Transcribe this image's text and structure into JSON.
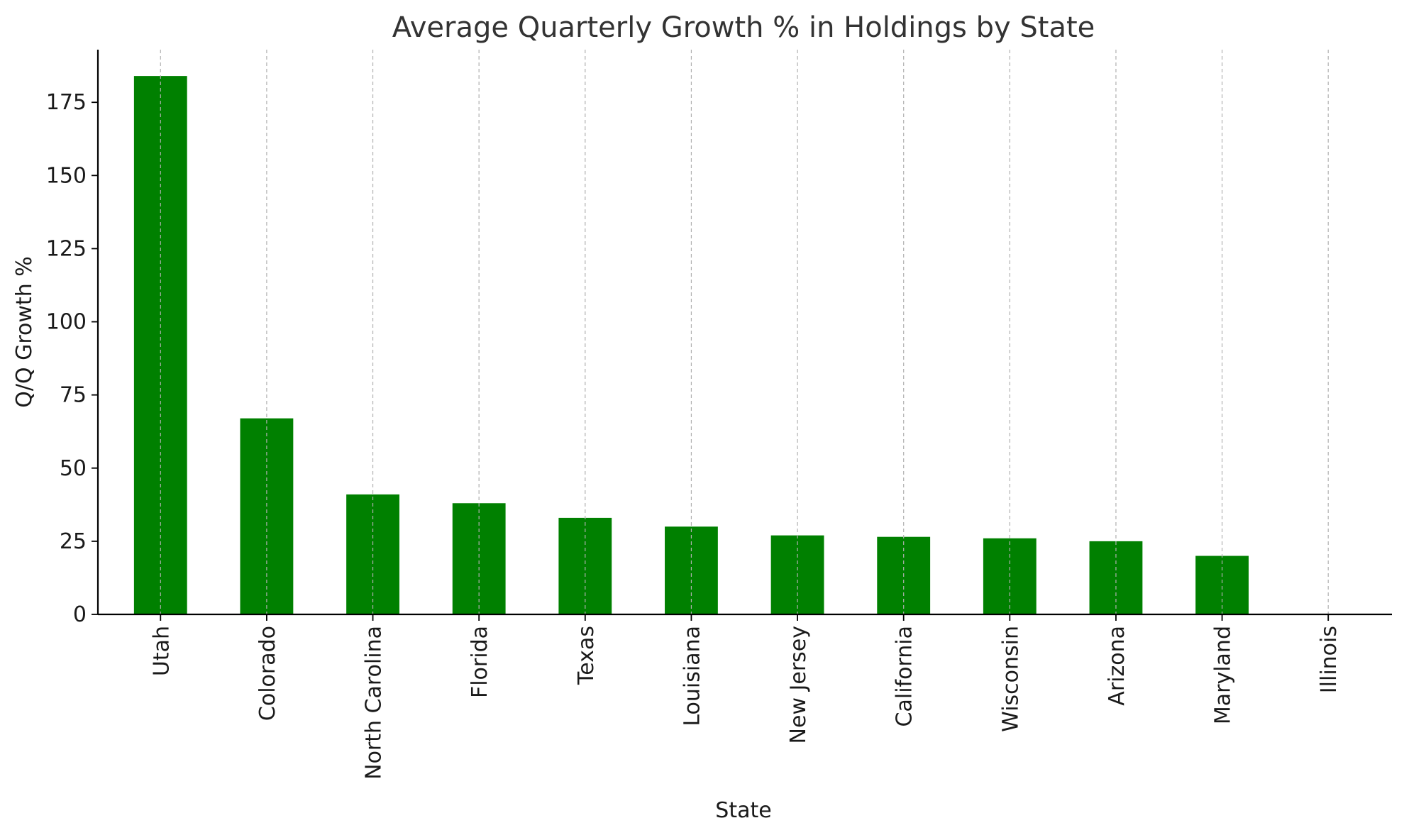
{
  "chart_data": {
    "type": "bar",
    "title": "Average Quarterly Growth % in Holdings by State",
    "xlabel": "State",
    "ylabel": "Q/Q Growth %",
    "categories": [
      "Utah",
      "Colorado",
      "North Carolina",
      "Florida",
      "Texas",
      "Louisiana",
      "New Jersey",
      "California",
      "Wisconsin",
      "Arizona",
      "Maryland",
      "Illinois"
    ],
    "values": [
      184,
      67,
      41,
      38,
      33,
      30,
      27,
      26.5,
      26,
      25,
      20,
      0
    ],
    "ylim": [
      0,
      193
    ],
    "yticks": [
      0,
      25,
      50,
      75,
      100,
      125,
      150,
      175
    ],
    "bar_color": "#008000",
    "grid": "x-axis dashed",
    "legend": "none"
  }
}
